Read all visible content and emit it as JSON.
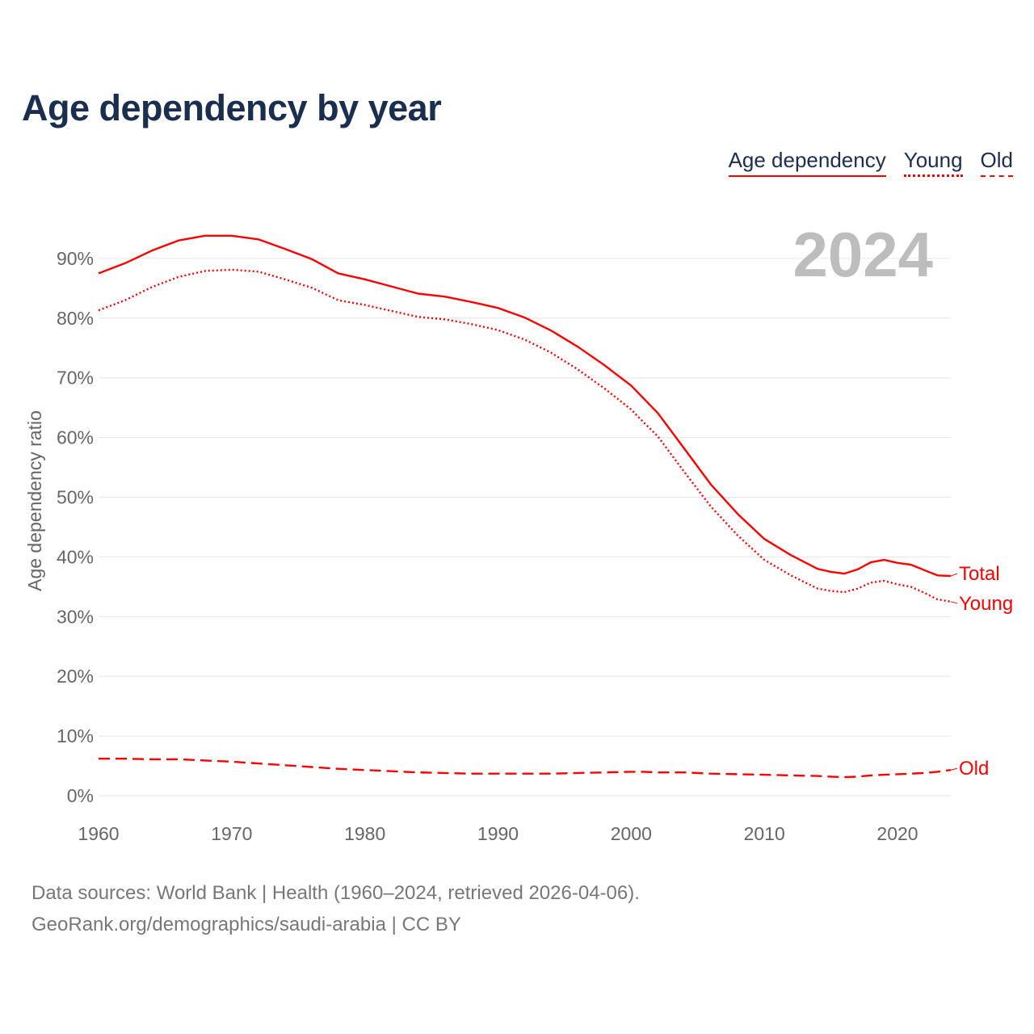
{
  "title": "Age dependency by year",
  "legend": [
    "Age dependency",
    "Young",
    "Old"
  ],
  "footer": {
    "line1": "Data sources: World Bank | Health (1960–2024, retrieved 2026-04-06).",
    "line2": "GeoRank.org/demographics/saudi-arabia | CC BY"
  },
  "colors": {
    "series": "#ff0000",
    "title": "#1a2e4f",
    "grid": "#e6e6e6",
    "year": "#bdbdbd"
  },
  "chart_data": {
    "type": "line",
    "title": "Age dependency by year",
    "ylabel": "Age dependency ratio",
    "xlabel": "",
    "year_label": "2024",
    "xlim": [
      1960,
      2024
    ],
    "ylim": [
      0,
      95
    ],
    "xticks": [
      "1960",
      "1970",
      "1980",
      "1990",
      "2000",
      "2010",
      "2020"
    ],
    "yticks": [
      "0%",
      "10%",
      "20%",
      "30%",
      "40%",
      "50%",
      "60%",
      "70%",
      "80%",
      "90%"
    ],
    "grid": true,
    "x": [
      1960,
      1962,
      1964,
      1966,
      1968,
      1970,
      1972,
      1974,
      1976,
      1978,
      1980,
      1982,
      1984,
      1986,
      1988,
      1990,
      1992,
      1994,
      1996,
      1998,
      2000,
      2001,
      2002,
      2004,
      2006,
      2008,
      2010,
      2012,
      2014,
      2015,
      2016,
      2017,
      2018,
      2019,
      2020,
      2021,
      2022,
      2023,
      2024
    ],
    "series": [
      {
        "name": "Total",
        "style": "solid",
        "values": [
          87.5,
          89.2,
          91.3,
          93.0,
          93.8,
          93.8,
          93.2,
          91.6,
          89.9,
          87.5,
          86.5,
          85.3,
          84.1,
          83.6,
          82.7,
          81.7,
          80.1,
          77.9,
          75.2,
          72.1,
          68.7,
          66.4,
          64.1,
          58.1,
          52.1,
          47.2,
          43.0,
          40.3,
          38.0,
          37.5,
          37.2,
          37.9,
          39.1,
          39.5,
          39.0,
          38.7,
          37.8,
          36.9,
          36.8
        ]
      },
      {
        "name": "Young",
        "style": "dotted",
        "values": [
          81.3,
          83.0,
          85.2,
          86.9,
          87.9,
          88.1,
          87.8,
          86.5,
          85.1,
          83.0,
          82.2,
          81.2,
          80.2,
          79.8,
          79.0,
          78.0,
          76.4,
          74.2,
          71.4,
          68.2,
          64.7,
          62.4,
          60.2,
          54.2,
          48.4,
          43.6,
          39.5,
          36.9,
          34.7,
          34.3,
          34.1,
          34.7,
          35.7,
          36.0,
          35.4,
          35.0,
          34.0,
          32.9,
          32.5
        ]
      },
      {
        "name": "Old",
        "style": "dashed",
        "values": [
          6.2,
          6.2,
          6.1,
          6.1,
          5.9,
          5.7,
          5.4,
          5.1,
          4.8,
          4.5,
          4.3,
          4.1,
          3.9,
          3.8,
          3.7,
          3.7,
          3.7,
          3.7,
          3.8,
          3.9,
          4.0,
          4.0,
          3.9,
          3.9,
          3.7,
          3.6,
          3.5,
          3.4,
          3.3,
          3.2,
          3.1,
          3.2,
          3.4,
          3.5,
          3.6,
          3.7,
          3.8,
          4.0,
          4.3
        ]
      }
    ]
  }
}
